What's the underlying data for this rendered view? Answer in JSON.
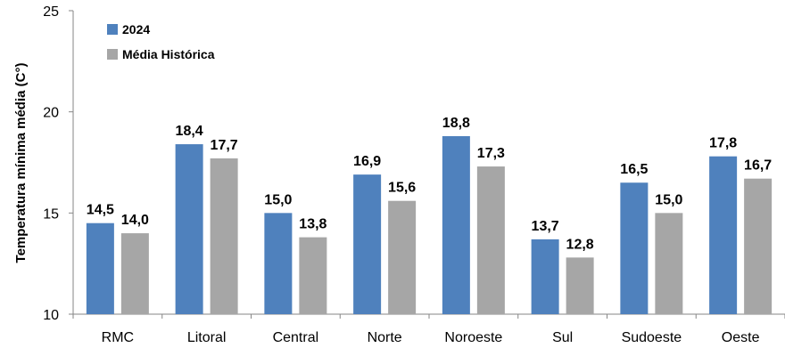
{
  "chart_data": {
    "type": "bar",
    "title": "",
    "xlabel": "",
    "ylabel": "Temperatura mínima média (C°)",
    "ylim": [
      10,
      25
    ],
    "yticks": [
      10,
      15,
      20,
      25
    ],
    "grid": false,
    "legend_position": "top-left",
    "categories": [
      "RMC",
      "Litoral",
      "Central",
      "Norte",
      "Noroeste",
      "Sul",
      "Sudoeste",
      "Oeste"
    ],
    "series": [
      {
        "name": "2024",
        "color": "#4f81bd",
        "values": [
          14.5,
          18.4,
          15.0,
          16.9,
          18.8,
          13.7,
          16.5,
          17.8
        ],
        "labels": [
          "14,5",
          "18,4",
          "15,0",
          "16,9",
          "18,8",
          "13,7",
          "16,5",
          "17,8"
        ]
      },
      {
        "name": "Média Histórica",
        "color": "#a6a6a6",
        "values": [
          14.0,
          17.7,
          13.8,
          15.6,
          17.3,
          12.8,
          15.0,
          16.7
        ],
        "labels": [
          "14,0",
          "17,7",
          "13,8",
          "15,6",
          "17,3",
          "12,8",
          "15,0",
          "16,7"
        ]
      }
    ]
  }
}
